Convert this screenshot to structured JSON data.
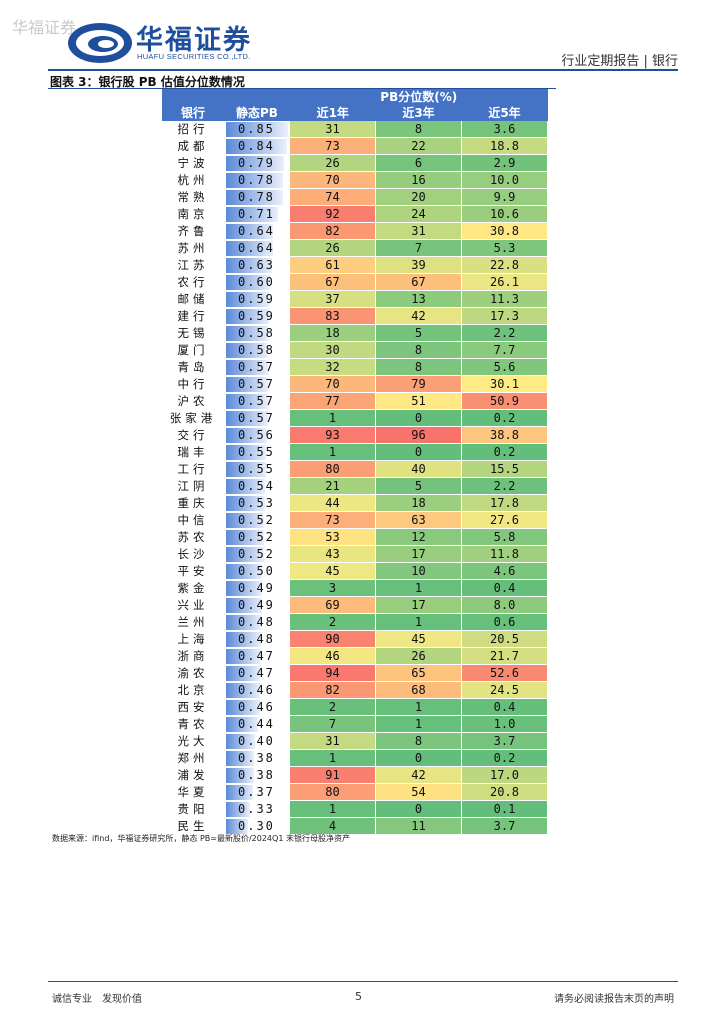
{
  "watermark": "华福证券",
  "brand": {
    "name_cn": "华福证券",
    "name_en": "HUAFU SECURITIES CO.,LTD."
  },
  "header_right": "行业定期报告 | 银行",
  "figure_title": "图表 3：银行股 PB 估值分位数情况",
  "table": {
    "group_header": "PB分位数(%)",
    "columns": [
      "银行",
      "静态PB",
      "近1年",
      "近3年",
      "近5年"
    ],
    "rows": [
      {
        "bank": "招行",
        "pb": "0.85",
        "y1": "31",
        "y3": "8",
        "y5": "3.6"
      },
      {
        "bank": "成都",
        "pb": "0.84",
        "y1": "73",
        "y3": "22",
        "y5": "18.8"
      },
      {
        "bank": "宁波",
        "pb": "0.79",
        "y1": "26",
        "y3": "6",
        "y5": "2.9"
      },
      {
        "bank": "杭州",
        "pb": "0.78",
        "y1": "70",
        "y3": "16",
        "y5": "10.0"
      },
      {
        "bank": "常熟",
        "pb": "0.78",
        "y1": "74",
        "y3": "20",
        "y5": "9.9"
      },
      {
        "bank": "南京",
        "pb": "0.71",
        "y1": "92",
        "y3": "24",
        "y5": "10.6"
      },
      {
        "bank": "齐鲁",
        "pb": "0.64",
        "y1": "82",
        "y3": "31",
        "y5": "30.8"
      },
      {
        "bank": "苏州",
        "pb": "0.64",
        "y1": "26",
        "y3": "7",
        "y5": "5.3"
      },
      {
        "bank": "江苏",
        "pb": "0.63",
        "y1": "61",
        "y3": "39",
        "y5": "22.8"
      },
      {
        "bank": "农行",
        "pb": "0.60",
        "y1": "67",
        "y3": "67",
        "y5": "26.1"
      },
      {
        "bank": "邮储",
        "pb": "0.59",
        "y1": "37",
        "y3": "13",
        "y5": "11.3"
      },
      {
        "bank": "建行",
        "pb": "0.59",
        "y1": "83",
        "y3": "42",
        "y5": "17.3"
      },
      {
        "bank": "无锡",
        "pb": "0.58",
        "y1": "18",
        "y3": "5",
        "y5": "2.2"
      },
      {
        "bank": "厦门",
        "pb": "0.58",
        "y1": "30",
        "y3": "8",
        "y5": "7.7"
      },
      {
        "bank": "青岛",
        "pb": "0.57",
        "y1": "32",
        "y3": "8",
        "y5": "5.6"
      },
      {
        "bank": "中行",
        "pb": "0.57",
        "y1": "70",
        "y3": "79",
        "y5": "30.1"
      },
      {
        "bank": "沪农",
        "pb": "0.57",
        "y1": "77",
        "y3": "51",
        "y5": "50.9"
      },
      {
        "bank": "张家港",
        "pb": "0.57",
        "y1": "1",
        "y3": "0",
        "y5": "0.2"
      },
      {
        "bank": "交行",
        "pb": "0.56",
        "y1": "93",
        "y3": "96",
        "y5": "38.8"
      },
      {
        "bank": "瑞丰",
        "pb": "0.55",
        "y1": "1",
        "y3": "0",
        "y5": "0.2"
      },
      {
        "bank": "工行",
        "pb": "0.55",
        "y1": "80",
        "y3": "40",
        "y5": "15.5"
      },
      {
        "bank": "江阴",
        "pb": "0.54",
        "y1": "21",
        "y3": "5",
        "y5": "2.2"
      },
      {
        "bank": "重庆",
        "pb": "0.53",
        "y1": "44",
        "y3": "18",
        "y5": "17.8"
      },
      {
        "bank": "中信",
        "pb": "0.52",
        "y1": "73",
        "y3": "63",
        "y5": "27.6"
      },
      {
        "bank": "苏农",
        "pb": "0.52",
        "y1": "53",
        "y3": "12",
        "y5": "5.8"
      },
      {
        "bank": "长沙",
        "pb": "0.52",
        "y1": "43",
        "y3": "17",
        "y5": "11.8"
      },
      {
        "bank": "平安",
        "pb": "0.50",
        "y1": "45",
        "y3": "10",
        "y5": "4.6"
      },
      {
        "bank": "紫金",
        "pb": "0.49",
        "y1": "3",
        "y3": "1",
        "y5": "0.4"
      },
      {
        "bank": "兴业",
        "pb": "0.49",
        "y1": "69",
        "y3": "17",
        "y5": "8.0"
      },
      {
        "bank": "兰州",
        "pb": "0.48",
        "y1": "2",
        "y3": "1",
        "y5": "0.6"
      },
      {
        "bank": "上海",
        "pb": "0.48",
        "y1": "90",
        "y3": "45",
        "y5": "20.5"
      },
      {
        "bank": "浙商",
        "pb": "0.47",
        "y1": "46",
        "y3": "26",
        "y5": "21.7"
      },
      {
        "bank": "渝农",
        "pb": "0.47",
        "y1": "94",
        "y3": "65",
        "y5": "52.6"
      },
      {
        "bank": "北京",
        "pb": "0.46",
        "y1": "82",
        "y3": "68",
        "y5": "24.5"
      },
      {
        "bank": "西安",
        "pb": "0.46",
        "y1": "2",
        "y3": "1",
        "y5": "0.4"
      },
      {
        "bank": "青农",
        "pb": "0.44",
        "y1": "7",
        "y3": "1",
        "y5": "1.0"
      },
      {
        "bank": "光大",
        "pb": "0.40",
        "y1": "31",
        "y3": "8",
        "y5": "3.7"
      },
      {
        "bank": "郑州",
        "pb": "0.38",
        "y1": "1",
        "y3": "0",
        "y5": "0.2"
      },
      {
        "bank": "浦发",
        "pb": "0.38",
        "y1": "91",
        "y3": "42",
        "y5": "17.0"
      },
      {
        "bank": "华夏",
        "pb": "0.37",
        "y1": "80",
        "y3": "54",
        "y5": "20.8"
      },
      {
        "bank": "贵阳",
        "pb": "0.33",
        "y1": "1",
        "y3": "0",
        "y5": "0.1"
      },
      {
        "bank": "民生",
        "pb": "0.30",
        "y1": "4",
        "y3": "11",
        "y5": "3.7"
      }
    ]
  },
  "source": "数据来源：ifind，华福证券研究所，静态 PB=最新股价/2024Q1 末银行母股净资产",
  "footer": {
    "left": "诚信专业　发现价值",
    "page": "5",
    "right": "请务必阅读报告末页的声明"
  },
  "colors": {
    "brand_blue": "#1f4e9c",
    "header_blue": "#4472c4",
    "heat_low": "#63be7b",
    "heat_mid": "#ffeb84",
    "heat_high": "#f8696b"
  }
}
